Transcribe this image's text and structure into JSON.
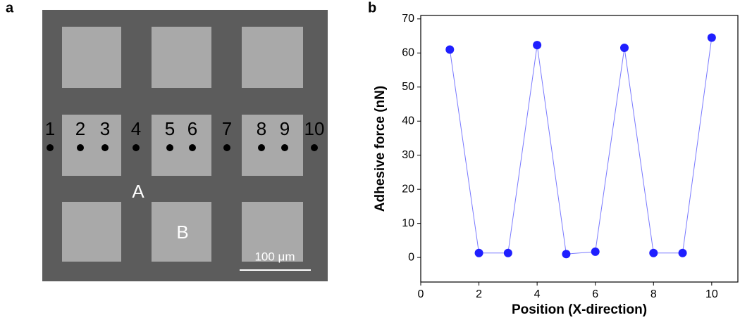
{
  "image": {
    "panel_label": "a",
    "point_labels": [
      "1",
      "2",
      "3",
      "4",
      "5",
      "6",
      "7",
      "8",
      "9",
      "10"
    ],
    "region_labels": [
      "A",
      "B"
    ],
    "scale_bar": "100 μm"
  },
  "chart_data": {
    "type": "line",
    "panel_label": "b",
    "x_label": "Position (X-direction)",
    "y_label": "Adhesive force (nN)",
    "x": [
      1,
      2,
      3,
      4,
      5,
      6,
      7,
      8,
      9,
      10
    ],
    "values": [
      61,
      1.3,
      1.3,
      62.3,
      1,
      1.7,
      61.5,
      1.3,
      1.3,
      64.5
    ],
    "color": "#1f1fff",
    "xlim": [
      0,
      10.9
    ],
    "ylim": [
      -7.2,
      71
    ],
    "xticks": [
      0,
      2,
      4,
      6,
      8,
      10
    ],
    "yticks": [
      0,
      10,
      20,
      30,
      40,
      50,
      60,
      70
    ]
  }
}
